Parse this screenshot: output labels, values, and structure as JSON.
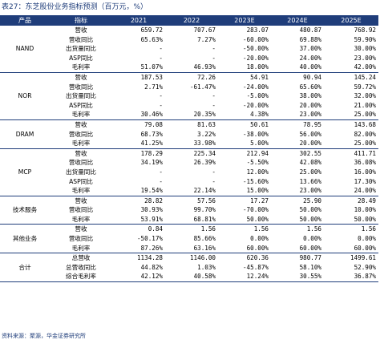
{
  "title": "表27：东芝股份业务指标预测（百万元，%）",
  "source": "资料来源：聚源，华金证券研究所",
  "headers": [
    "产品",
    "指标",
    "2021",
    "2022",
    "2023E",
    "2024E",
    "2025E"
  ],
  "groups": [
    {
      "category": "NAND",
      "rows": [
        {
          "metric": "营收",
          "values": [
            "659.72",
            "707.67",
            "283.07",
            "480.87",
            "768.92"
          ]
        },
        {
          "metric": "营收同比",
          "values": [
            "65.63%",
            "7.27%",
            "-60.00%",
            "69.88%",
            "59.90%"
          ]
        },
        {
          "metric": "出货量同比",
          "values": [
            "-",
            "-",
            "-50.00%",
            "37.00%",
            "30.00%"
          ]
        },
        {
          "metric": "ASP同比",
          "values": [
            "-",
            "-",
            "-20.00%",
            "24.00%",
            "23.00%"
          ]
        },
        {
          "metric": "毛利率",
          "values": [
            "51.07%",
            "46.93%",
            "18.00%",
            "40.00%",
            "42.00%"
          ]
        }
      ]
    },
    {
      "category": "NOR",
      "rows": [
        {
          "metric": "营收",
          "values": [
            "187.53",
            "72.26",
            "54.91",
            "90.94",
            "145.24"
          ]
        },
        {
          "metric": "营收同比",
          "values": [
            "2.71%",
            "-61.47%",
            "-24.00%",
            "65.60%",
            "59.72%"
          ]
        },
        {
          "metric": "出货量同比",
          "values": [
            "-",
            "-",
            "-5.00%",
            "38.00%",
            "32.00%"
          ]
        },
        {
          "metric": "ASP同比",
          "values": [
            "-",
            "-",
            "-20.00%",
            "20.00%",
            "21.00%"
          ]
        },
        {
          "metric": "毛利率",
          "values": [
            "30.46%",
            "20.35%",
            "4.38%",
            "23.00%",
            "25.00%"
          ]
        }
      ]
    },
    {
      "category": "DRAM",
      "rows": [
        {
          "metric": "营收",
          "values": [
            "79.08",
            "81.63",
            "50.61",
            "78.95",
            "143.68"
          ]
        },
        {
          "metric": "营收同比",
          "values": [
            "68.73%",
            "3.22%",
            "-38.00%",
            "56.00%",
            "82.00%"
          ]
        },
        {
          "metric": "毛利率",
          "values": [
            "41.25%",
            "33.98%",
            "5.00%",
            "20.00%",
            "25.00%"
          ]
        }
      ]
    },
    {
      "category": "MCP",
      "rows": [
        {
          "metric": "营收",
          "values": [
            "178.29",
            "225.34",
            "212.94",
            "302.55",
            "411.71"
          ]
        },
        {
          "metric": "营收同比",
          "values": [
            "34.19%",
            "26.39%",
            "-5.50%",
            "42.08%",
            "36.08%"
          ]
        },
        {
          "metric": "出货量同比",
          "values": [
            "-",
            "-",
            "12.00%",
            "25.00%",
            "16.00%"
          ]
        },
        {
          "metric": "ASP同比",
          "values": [
            "-",
            "-",
            "-15.60%",
            "13.66%",
            "17.30%"
          ]
        },
        {
          "metric": "毛利率",
          "values": [
            "19.54%",
            "22.14%",
            "15.00%",
            "23.00%",
            "24.00%"
          ]
        }
      ]
    },
    {
      "category": "技术服务",
      "rows": [
        {
          "metric": "营收",
          "values": [
            "28.82",
            "57.56",
            "17.27",
            "25.90",
            "28.49"
          ]
        },
        {
          "metric": "营收同比",
          "values": [
            "30.93%",
            "99.70%",
            "-70.00%",
            "50.00%",
            "10.00%"
          ]
        },
        {
          "metric": "毛利率",
          "values": [
            "53.91%",
            "68.81%",
            "50.00%",
            "50.00%",
            "50.00%"
          ]
        }
      ]
    },
    {
      "category": "其他业务",
      "rows": [
        {
          "metric": "营收",
          "values": [
            "0.84",
            "1.56",
            "1.56",
            "1.56",
            "1.56"
          ]
        },
        {
          "metric": "营收同比",
          "values": [
            "-50.17%",
            "85.66%",
            "0.00%",
            "0.00%",
            "0.00%"
          ]
        },
        {
          "metric": "毛利率",
          "values": [
            "87.26%",
            "63.16%",
            "60.00%",
            "60.00%",
            "60.00%"
          ]
        }
      ]
    },
    {
      "category": "合计",
      "rows": [
        {
          "metric": "总营收",
          "values": [
            "1134.28",
            "1146.00",
            "620.36",
            "980.77",
            "1499.61"
          ]
        },
        {
          "metric": "总营收同比",
          "values": [
            "44.82%",
            "1.03%",
            "-45.87%",
            "58.10%",
            "52.90%"
          ]
        },
        {
          "metric": "综合毛利率",
          "values": [
            "42.12%",
            "40.58%",
            "12.24%",
            "30.55%",
            "36.87%"
          ]
        }
      ]
    }
  ]
}
